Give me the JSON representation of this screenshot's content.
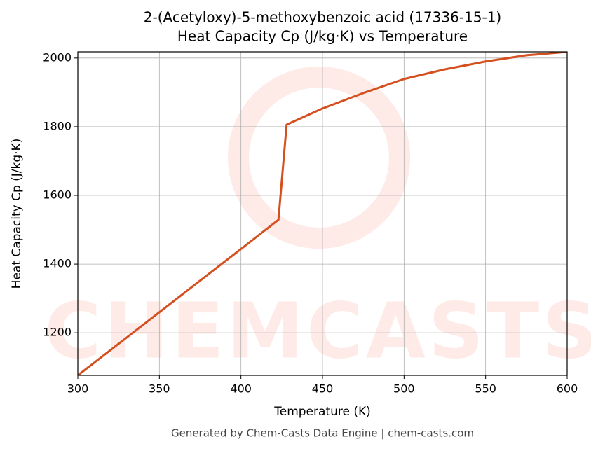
{
  "chart_data": {
    "type": "line",
    "title": "2-(Acetyloxy)-5-methoxybenzoic acid (17336-15-1)",
    "subtitle": "Heat Capacity Cp (J/kg·K) vs Temperature",
    "x_label": "Temperature (K)",
    "y_label": "Heat Capacity Cp (J/kg·K)",
    "watermark": "CHEMCASTS",
    "footer": "Generated by Chem-Casts Data Engine | chem-casts.com",
    "x": [
      300,
      350,
      400,
      423,
      428,
      450,
      475,
      500,
      525,
      550,
      575,
      600
    ],
    "values": [
      1076,
      1260,
      1444,
      1529,
      1806,
      1853,
      1898,
      1939,
      1967,
      1990,
      2008,
      2018
    ],
    "color": "#d5501f",
    "xlim": [
      300,
      600
    ],
    "xticks": [
      300,
      350,
      400,
      450,
      500,
      550,
      600
    ],
    "ylim": [
      1076,
      2018
    ],
    "yticks": [
      1200,
      1400,
      1600,
      1800,
      2000
    ],
    "grid": true
  }
}
